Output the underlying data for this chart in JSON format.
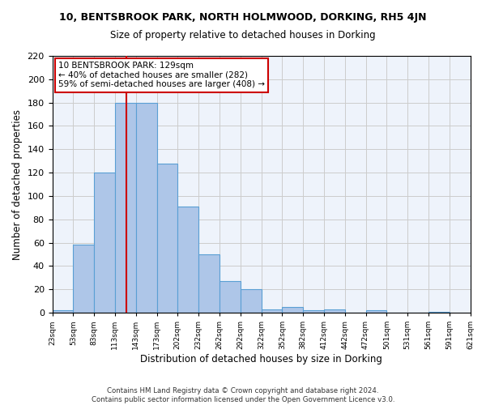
{
  "title": "10, BENTSBROOK PARK, NORTH HOLMWOOD, DORKING, RH5 4JN",
  "subtitle": "Size of property relative to detached houses in Dorking",
  "xlabel": "Distribution of detached houses by size in Dorking",
  "ylabel": "Number of detached properties",
  "bar_values": [
    2,
    58,
    120,
    180,
    180,
    128,
    91,
    50,
    27,
    20,
    3,
    5,
    2,
    3,
    0,
    2,
    0,
    0,
    1
  ],
  "tick_labels": [
    "23sqm",
    "53sqm",
    "83sqm",
    "113sqm",
    "143sqm",
    "173sqm",
    "202sqm",
    "232sqm",
    "262sqm",
    "292sqm",
    "322sqm",
    "352sqm",
    "382sqm",
    "412sqm",
    "442sqm",
    "472sqm",
    "501sqm",
    "531sqm",
    "561sqm",
    "591sqm",
    "621sqm"
  ],
  "bar_color": "#aec6e8",
  "bar_edge_color": "#5a9fd4",
  "vline_x": 4,
  "vline_color": "#cc0000",
  "annotation_text": "10 BENTSBROOK PARK: 129sqm\n← 40% of detached houses are smaller (282)\n59% of semi-detached houses are larger (408) →",
  "annotation_box_color": "#ffffff",
  "annotation_box_edge": "#cc0000",
  "ylim": [
    0,
    220
  ],
  "yticks": [
    0,
    20,
    40,
    60,
    80,
    100,
    120,
    140,
    160,
    180,
    200,
    220
  ],
  "grid_color": "#cccccc",
  "bg_color": "#eef3fb",
  "footer": "Contains HM Land Registry data © Crown copyright and database right 2024.\nContains public sector information licensed under the Open Government Licence v3.0."
}
